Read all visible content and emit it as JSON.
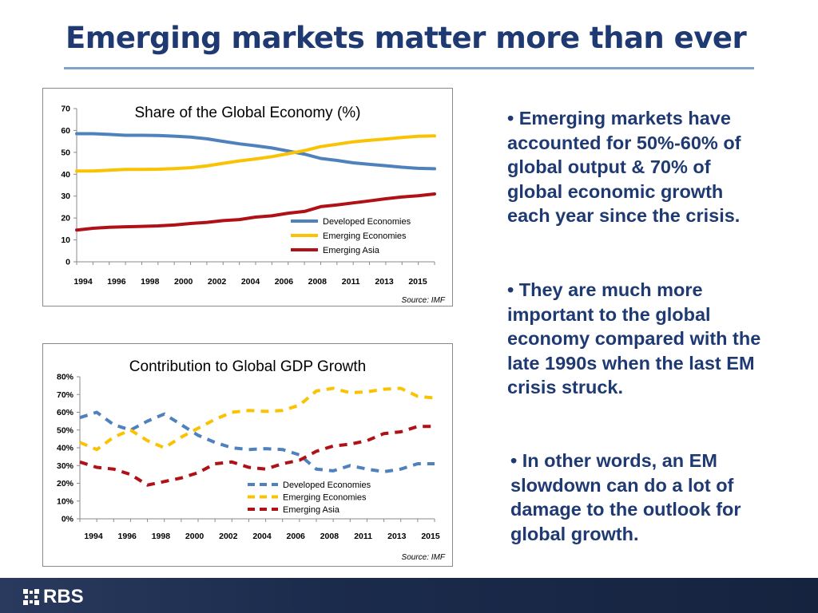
{
  "slide": {
    "title": "Emerging markets matter more than ever",
    "bullets": [
      "• Emerging markets have accounted for 50%-60% of global output & 70% of global economic growth each year since the crisis.",
      "• They are much more important to the global economy compared with the late 1990s when the last EM crisis struck.",
      "• In other words, an EM slowdown can do a lot of damage to the outlook for global growth."
    ],
    "footer": {
      "logo_text": "RBS",
      "colors": {
        "band": "#1b2b4c",
        "logo": "#ffffff"
      }
    }
  },
  "chart_data": [
    {
      "type": "line",
      "title": "Share of the Global Economy (%)",
      "source": "Source: IMF",
      "xlabel": "",
      "ylabel": "",
      "ylim": [
        0,
        70
      ],
      "yticks": [
        "0",
        "10",
        "20",
        "30",
        "40",
        "50",
        "60",
        "70"
      ],
      "x": [
        1994,
        1995,
        1996,
        1997,
        1998,
        1999,
        2000,
        2001,
        2002,
        2003,
        2004,
        2005,
        2006,
        2007,
        2008,
        2009,
        2010,
        2011,
        2012,
        2013,
        2014,
        2015,
        2016
      ],
      "xtick_labels": [
        "1994",
        "1996",
        "1998",
        "2000",
        "2002",
        "2004",
        "2006",
        "2008",
        "2011",
        "2013",
        "2015"
      ],
      "legend_position": "bottom-right",
      "grid": false,
      "series": [
        {
          "name": "Developed Economies",
          "color": "#4f81bd",
          "style": "solid",
          "values": [
            58.5,
            58.5,
            58.2,
            57.8,
            57.8,
            57.7,
            57.4,
            57.0,
            56.2,
            55.0,
            53.9,
            53.0,
            52.0,
            50.6,
            49.2,
            47.2,
            46.3,
            45.2,
            44.5,
            43.9,
            43.2,
            42.7,
            42.5
          ]
        },
        {
          "name": "Emerging Economies",
          "color": "#f9c304",
          "style": "solid",
          "values": [
            41.5,
            41.5,
            41.8,
            42.2,
            42.2,
            42.3,
            42.6,
            43.0,
            43.8,
            45.0,
            46.1,
            47.0,
            48.0,
            49.4,
            50.8,
            52.6,
            53.7,
            54.8,
            55.5,
            56.1,
            56.8,
            57.3,
            57.5
          ]
        },
        {
          "name": "Emerging Asia",
          "color": "#b01116",
          "style": "solid",
          "values": [
            14.5,
            15.3,
            15.8,
            16.0,
            16.2,
            16.4,
            16.8,
            17.5,
            18.0,
            18.8,
            19.3,
            20.4,
            21.0,
            22.2,
            23.0,
            25.2,
            26.0,
            26.9,
            27.8,
            28.8,
            29.6,
            30.2,
            31.0
          ]
        }
      ]
    },
    {
      "type": "line",
      "title": "Contribution to Global GDP Growth",
      "source": "Source: IMF",
      "xlabel": "",
      "ylabel": "",
      "ylim": [
        0,
        80
      ],
      "yticks": [
        "0%",
        "10%",
        "20%",
        "30%",
        "40%",
        "50%",
        "60%",
        "70%",
        "80%"
      ],
      "x": [
        1994,
        1995,
        1996,
        1997,
        1998,
        1999,
        2000,
        2001,
        2002,
        2003,
        2004,
        2005,
        2006,
        2007,
        2008,
        2009,
        2010,
        2011,
        2012,
        2013,
        2014,
        2015
      ],
      "xtick_labels": [
        "1994",
        "1996",
        "1998",
        "2000",
        "2002",
        "2004",
        "2006",
        "2008",
        "2011",
        "2013",
        "2015"
      ],
      "legend_position": "bottom-center",
      "grid": false,
      "series": [
        {
          "name": "Developed Economies",
          "color": "#4f81bd",
          "style": "dashed",
          "values": [
            57,
            60,
            53,
            50,
            55,
            59,
            53,
            47,
            43,
            40,
            39,
            39.5,
            39,
            36,
            28,
            27,
            30,
            28,
            26.5,
            28,
            31,
            31
          ]
        },
        {
          "name": "Emerging Economies",
          "color": "#f9c304",
          "style": "dashed",
          "values": [
            43,
            39,
            46,
            50,
            44,
            40,
            46,
            51,
            56,
            60,
            61,
            60.5,
            61,
            64,
            72,
            73.5,
            71,
            71.5,
            73,
            73.5,
            69,
            68
          ]
        },
        {
          "name": "Emerging Asia",
          "color": "#b01116",
          "style": "dashed",
          "values": [
            32,
            29,
            28,
            25,
            19,
            21,
            23,
            26,
            31,
            32,
            29,
            28,
            31,
            33,
            38,
            41,
            42,
            44,
            48,
            49,
            52,
            52
          ]
        }
      ]
    }
  ]
}
